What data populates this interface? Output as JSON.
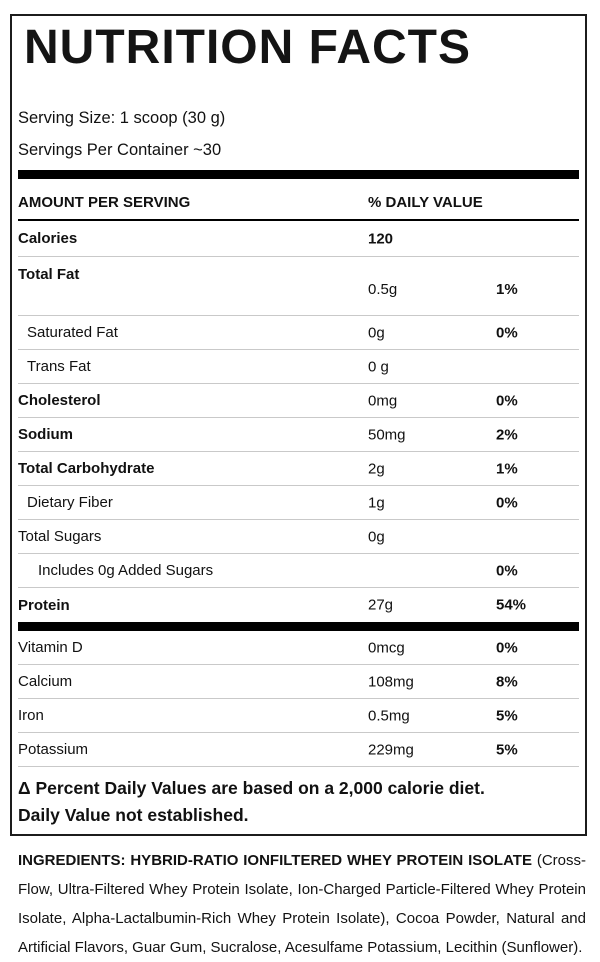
{
  "label": {
    "title": "NUTRITION FACTS",
    "serving_size": "Serving Size: 1 scoop (30 g)",
    "servings_per_container": "Servings Per Container ~30",
    "columns": {
      "amount_header": "AMOUNT PER SERVING",
      "daily_value_header": "% DAILY VALUE"
    },
    "nutrient_rows": [
      {
        "label": "Calories",
        "amount": "120"
      },
      {
        "label": "Total Fat",
        "amount": "0.5g",
        "percent": "1%"
      },
      {
        "label": "Saturated Fat",
        "amount": "0g",
        "percent": "0%"
      },
      {
        "label": "Trans Fat",
        "amount": "0 g"
      },
      {
        "label": "Cholesterol",
        "amount": "0mg",
        "percent": "0%"
      },
      {
        "label": "Sodium",
        "amount": "50mg",
        "percent": "2%"
      },
      {
        "label": "Total Carbohydrate",
        "amount": "2g",
        "percent": "1%"
      },
      {
        "label": "Dietary Fiber",
        "amount": "1g",
        "percent": "0%"
      },
      {
        "label": "Total Sugars",
        "amount": "0g"
      },
      {
        "label": "Includes 0g Added Sugars",
        "percent": "0%"
      },
      {
        "label": "Protein",
        "amount": "27g",
        "percent": "54%"
      }
    ],
    "micronutrient_rows": [
      {
        "label": "Vitamin D",
        "amount": "0mcg",
        "percent": "0%"
      },
      {
        "label": "Calcium",
        "amount": "108mg",
        "percent": "8%"
      },
      {
        "label": "Iron",
        "amount": "0.5mg",
        "percent": "5%"
      },
      {
        "label": "Potassium",
        "amount": "229mg",
        "percent": "5%"
      }
    ],
    "footnotes": [
      "Δ Percent Daily Values are based on a 2,000 calorie diet.",
      "Daily Value not established."
    ]
  },
  "ingredients": {
    "intro_bold": "INGREDIENTS: HYBRID-RATIO IONFILTERED WHEY PROTEIN ISOLATE",
    "rest": "(Cross-Flow, Ultra-Filtered Whey Protein Isolate, Ion-Charged Particle-Filtered Whey Protein Isolate, Alpha-Lactalbumin-Rich Whey Protein Isolate), Cocoa Powder, Natural and Artificial Flavors, Guar Gum, Sucralose, Acesulfame Potassium, Lecithin (Sunflower)."
  },
  "colors": {
    "text": "#111111",
    "separator": "#c9c9c9",
    "border": "#1c1c1c",
    "bar": "#000000"
  }
}
